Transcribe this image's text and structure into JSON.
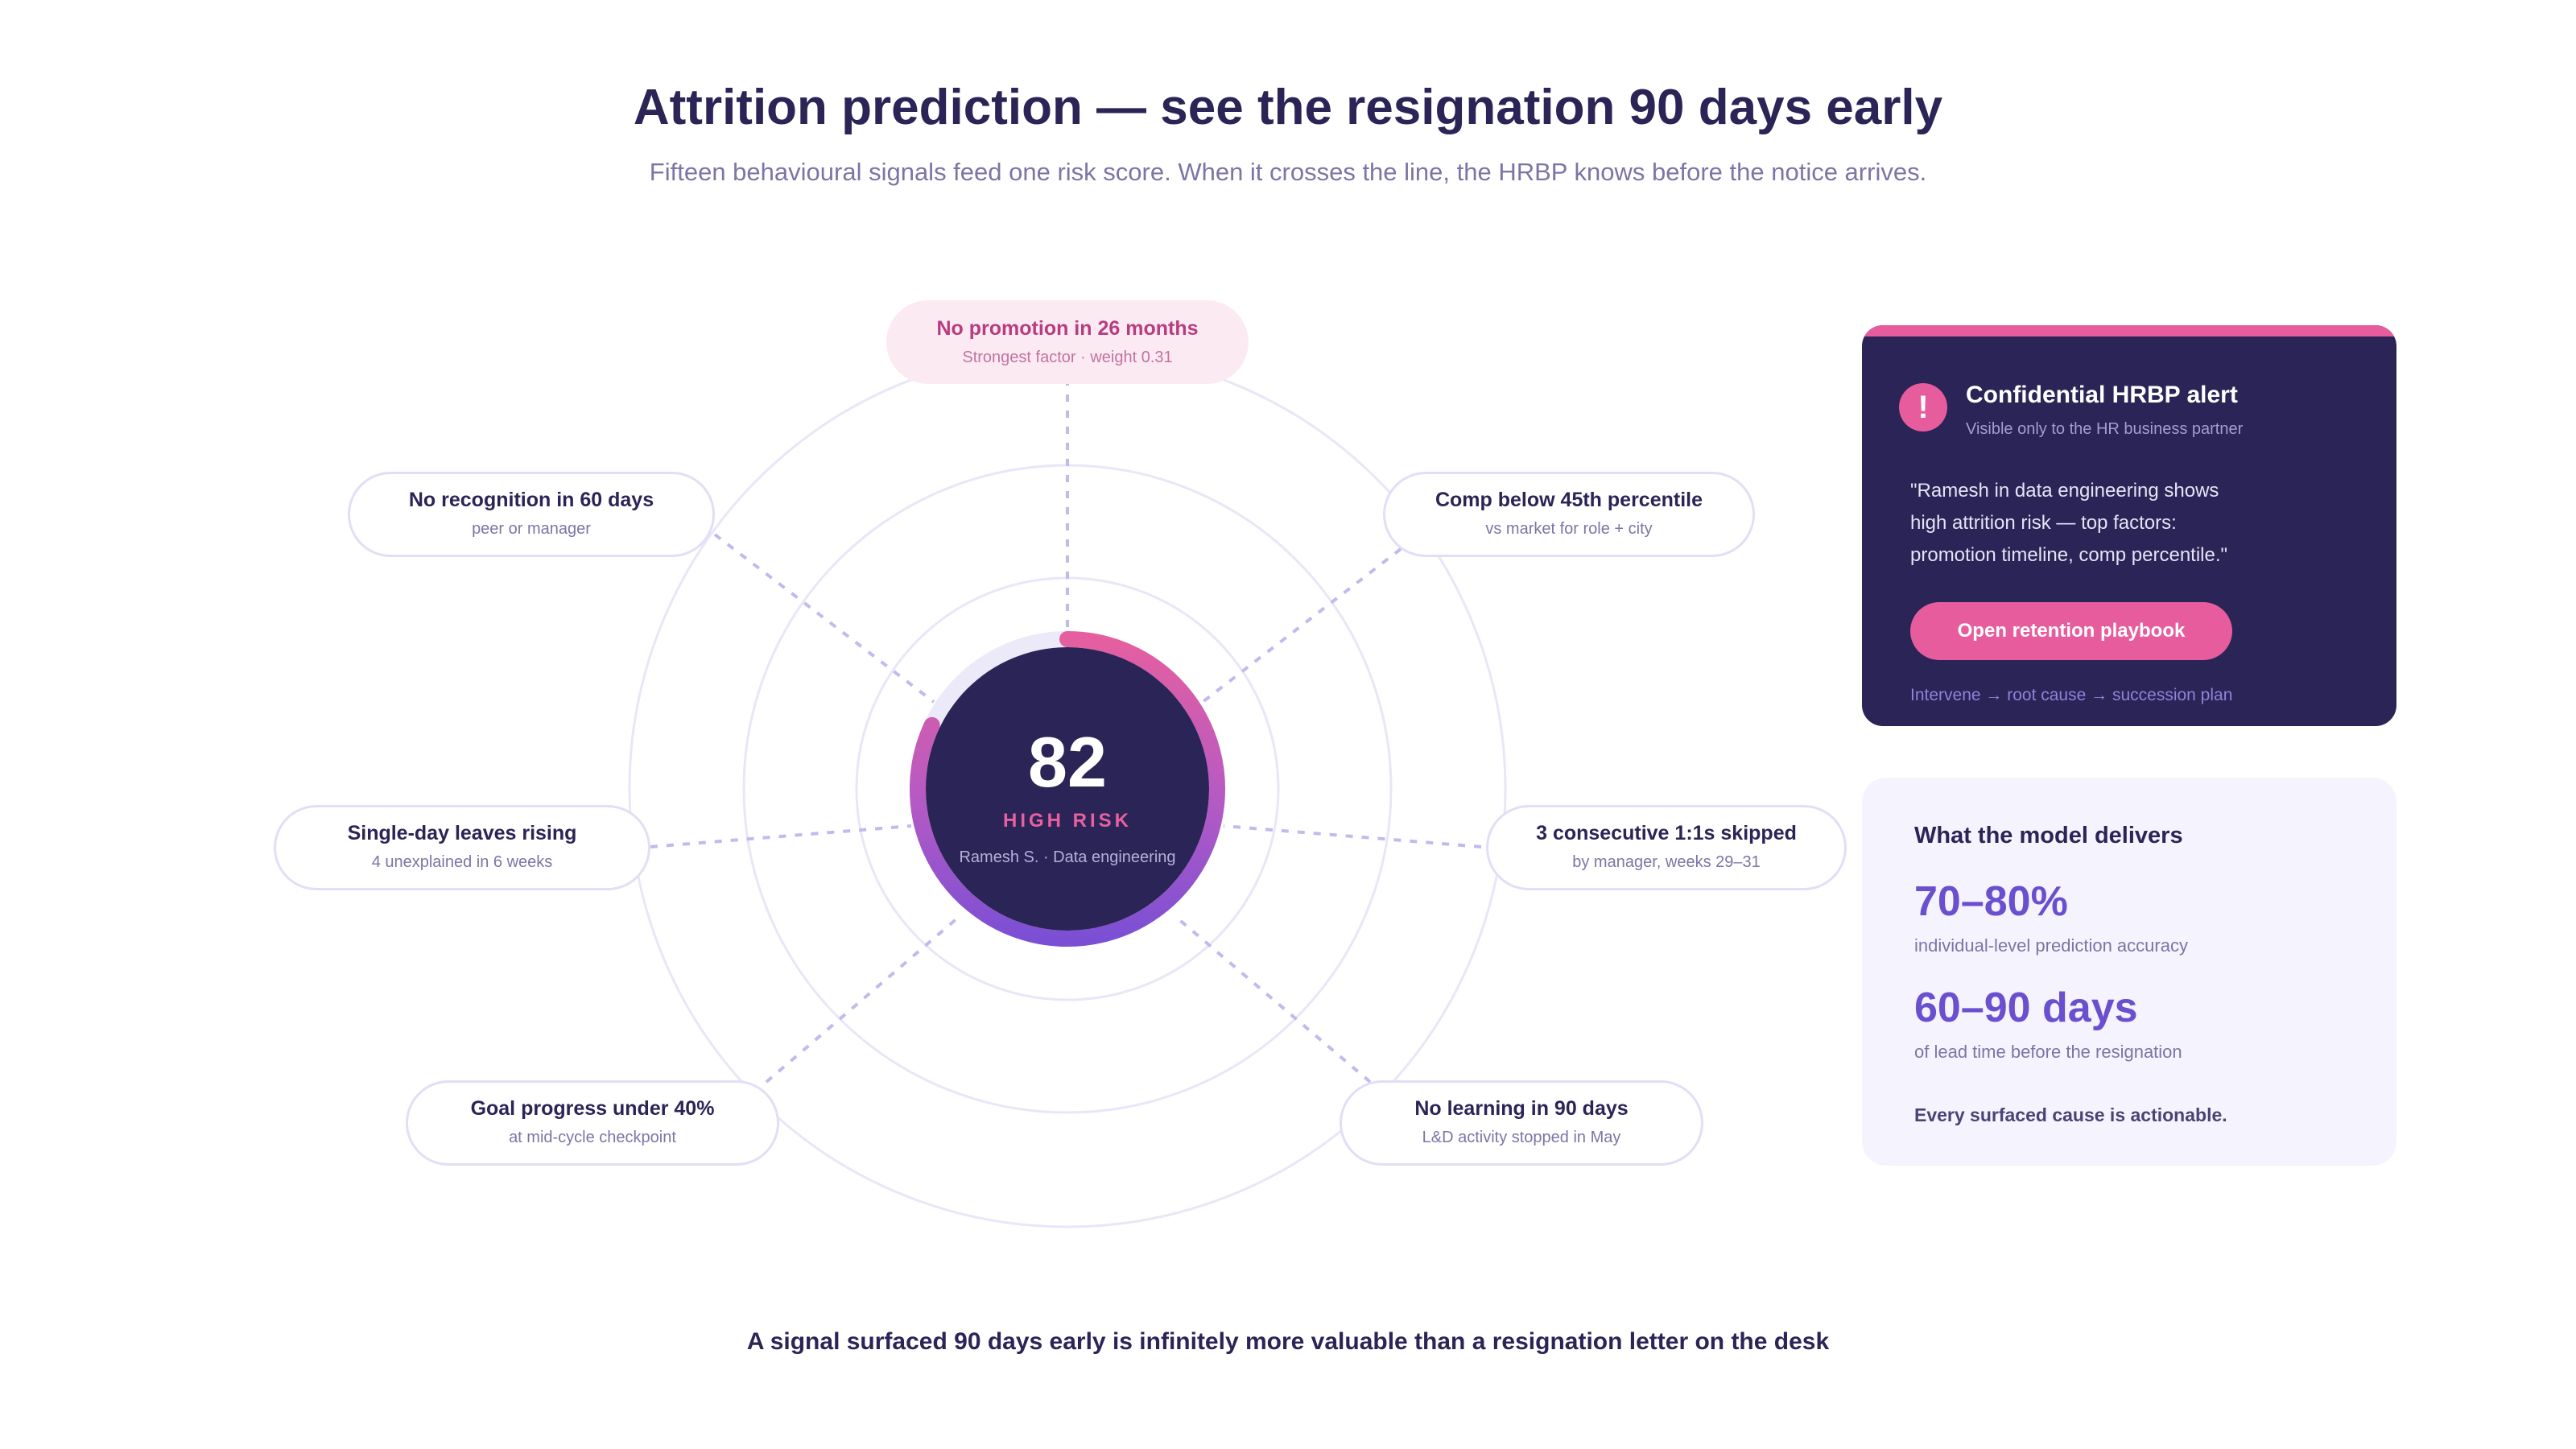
{
  "header": {
    "title": "Attrition prediction — see the resignation 90 days early",
    "subtitle": "Fifteen behavioural signals feed one risk score. When it crosses the line, the HRBP knows before the notice arrives."
  },
  "score": {
    "value": "82",
    "value_fraction": 0.82,
    "label": "HIGH RISK",
    "person": "Ramesh S. · Data engineering"
  },
  "signals": [
    {
      "title": "No promotion in 26 months",
      "subtitle": "Strongest factor · weight 0.31",
      "highlight": true
    },
    {
      "title": "No recognition in 60 days",
      "subtitle": "peer or manager"
    },
    {
      "title": "Comp below 45th percentile",
      "subtitle": "vs market for role + city"
    },
    {
      "title": "Single-day leaves rising",
      "subtitle": "4 unexplained in 6 weeks"
    },
    {
      "title": "3 consecutive 1:1s skipped",
      "subtitle": "by manager, weeks 29–31"
    },
    {
      "title": "Goal progress under 40%",
      "subtitle": "at mid-cycle checkpoint"
    },
    {
      "title": "No learning in 90 days",
      "subtitle": "L&D activity stopped in May"
    }
  ],
  "alert": {
    "title": "Confidential HRBP alert",
    "subtitle": "Visible only to the HR business partner",
    "quote_lines": [
      "\"Ramesh in data engineering shows",
      "high attrition risk — top factors:",
      "promotion timeline, comp percentile.\""
    ],
    "button": "Open retention playbook",
    "path": "Intervene → root cause → succession plan",
    "icon": "exclamation-icon"
  },
  "model": {
    "title": "What the model delivers",
    "stats": [
      {
        "value": "70–80%",
        "label": "individual-level prediction accuracy"
      },
      {
        "value": "60–90 days",
        "label": "of lead time before the resignation"
      }
    ],
    "footnote": "Every surfaced cause is actionable."
  },
  "footer": {
    "text": "A signal surfaced 90 days early is infinitely more valuable than a resignation letter on the desk"
  },
  "colors": {
    "navy": "#2b2456",
    "pink": "#e65c9c",
    "purple": "#6a4fcf",
    "ring": "#e9e6f7",
    "connector": "#c3b9ee"
  }
}
